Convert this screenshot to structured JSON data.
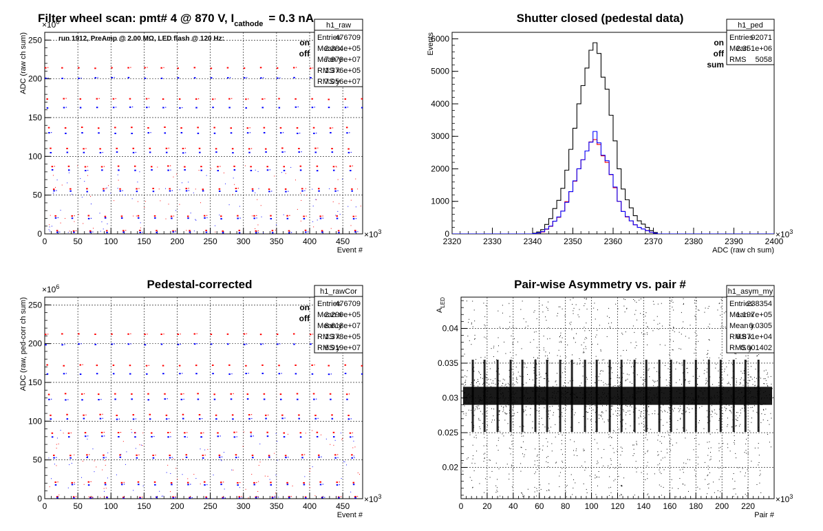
{
  "chart_data": [
    {
      "type": "scatter",
      "title": "Filter wheel scan: pmt#   4 @   870 V, I",
      "title_sub": "cathode",
      "title_tail": "= 0.3 nA",
      "xlabel": "Event #",
      "ylabel": "ADC (raw ch sum)",
      "xlim": [
        0,
        480000
      ],
      "ylim": [
        0,
        260000000
      ],
      "x_multiplier_label": "×10",
      "x_multiplier_exp": "3",
      "y_multiplier_label": "×10",
      "y_multiplier_exp": "6",
      "xtick_values": [
        0,
        50,
        100,
        150,
        200,
        250,
        300,
        350,
        400,
        450
      ],
      "xtick_labels": [
        "0",
        "50",
        "100",
        "150",
        "200",
        "250",
        "300",
        "350",
        "400",
        "450"
      ],
      "ytick_values": [
        0,
        50,
        100,
        150,
        200,
        250
      ],
      "ytick_labels": [
        "0",
        "50",
        "100",
        "150",
        "200",
        "250"
      ],
      "grid": true,
      "annotation": "run 1912, PreAmp @ 2.00 MΩ, LED flash @  120 Hz:",
      "legend": [
        "on",
        "off"
      ],
      "series": [
        {
          "name": "on",
          "color": "#ff0000",
          "levels": [
            214,
            174,
            137,
            110,
            87,
            58,
            23,
            4
          ]
        },
        {
          "name": "off",
          "color": "#0000ff",
          "levels": [
            201,
            163,
            130,
            105,
            82,
            55,
            20,
            2
          ]
        }
      ],
      "stats": {
        "name": "h1_raw",
        "rows": [
          [
            "Entries",
            "476709"
          ],
          [
            "Mean x",
            "2.384e+05"
          ],
          [
            "Mean y",
            "7.979e+07"
          ],
          [
            "RMS x",
            "1.376e+05"
          ],
          [
            "RMS y",
            "7.056e+07"
          ]
        ]
      }
    },
    {
      "type": "histogram",
      "title": "Shutter closed (pedestal data)",
      "xlabel": "ADC (raw ch sum)",
      "ylabel": "Events",
      "xlim": [
        2320000,
        2400000
      ],
      "ylim": [
        0,
        6200
      ],
      "x_multiplier_label": "×10",
      "x_multiplier_exp": "3",
      "xtick_values": [
        2320,
        2330,
        2340,
        2350,
        2360,
        2370,
        2380,
        2390,
        2400
      ],
      "xtick_labels": [
        "2320",
        "2330",
        "2340",
        "2350",
        "2360",
        "2370",
        "2380",
        "2390",
        "2400"
      ],
      "ytick_values": [
        0,
        1000,
        2000,
        3000,
        4000,
        5000,
        6000
      ],
      "ytick_labels": [
        "0",
        "1000",
        "2000",
        "3000",
        "4000",
        "5000",
        "6000"
      ],
      "grid": false,
      "legend": [
        "on",
        "off",
        "sum"
      ],
      "bins_start": 2320,
      "bin_width": 1,
      "series": [
        {
          "name": "sum",
          "color": "#000000",
          "values": [
            0,
            0,
            0,
            0,
            0,
            0,
            0,
            0,
            0,
            0,
            0,
            0,
            0,
            0,
            0,
            0,
            0,
            0,
            0,
            0,
            20,
            60,
            130,
            290,
            470,
            780,
            1030,
            1400,
            1960,
            2600,
            3250,
            4000,
            4560,
            5100,
            5650,
            5880,
            5550,
            4820,
            4450,
            3650,
            2860,
            2000,
            1380,
            1050,
            800,
            560,
            400,
            300,
            200,
            100,
            40,
            0,
            0,
            0,
            0,
            0,
            0,
            0,
            0,
            0,
            0,
            0,
            0,
            0,
            0,
            0,
            0,
            0,
            0,
            0,
            0,
            0,
            0,
            0,
            0,
            0,
            0,
            0,
            0,
            0
          ]
        },
        {
          "name": "on",
          "color": "#ff0000",
          "values": [
            0,
            0,
            0,
            0,
            0,
            0,
            0,
            0,
            0,
            0,
            0,
            0,
            0,
            0,
            0,
            0,
            0,
            0,
            0,
            0,
            10,
            30,
            60,
            140,
            230,
            390,
            510,
            700,
            990,
            1300,
            1620,
            2000,
            2280,
            2550,
            2830,
            2900,
            2750,
            2400,
            2200,
            1820,
            1420,
            1000,
            690,
            520,
            400,
            280,
            200,
            150,
            100,
            50,
            20,
            0,
            0,
            0,
            0,
            0,
            0,
            0,
            0,
            0,
            0,
            0,
            0,
            0,
            0,
            0,
            0,
            0,
            0,
            0,
            0,
            0,
            0,
            0,
            0,
            0,
            0,
            0,
            0,
            0
          ]
        },
        {
          "name": "off",
          "color": "#0000ff",
          "values": [
            0,
            0,
            0,
            0,
            0,
            0,
            0,
            0,
            0,
            0,
            0,
            0,
            0,
            0,
            0,
            0,
            0,
            0,
            0,
            0,
            10,
            30,
            70,
            150,
            240,
            390,
            520,
            700,
            970,
            1300,
            1630,
            2000,
            2280,
            2550,
            2820,
            3150,
            2800,
            2420,
            2250,
            1830,
            1440,
            1000,
            690,
            530,
            400,
            280,
            200,
            150,
            100,
            50,
            20,
            0,
            0,
            0,
            0,
            0,
            0,
            0,
            0,
            0,
            0,
            0,
            0,
            0,
            0,
            0,
            0,
            0,
            0,
            0,
            0,
            0,
            0,
            0,
            0,
            0,
            0,
            0,
            0,
            0
          ]
        }
      ],
      "stats": {
        "name": "h1_ped",
        "rows": [
          [
            "Entries",
            "92071"
          ],
          [
            "Mean",
            "2.351e+06"
          ],
          [
            "RMS",
            "5058"
          ]
        ]
      }
    },
    {
      "type": "scatter",
      "title": "Pedestal-corrected",
      "xlabel": "Event #",
      "ylabel": "ADC (raw, ped-corr ch sum)",
      "xlim": [
        0,
        480000
      ],
      "ylim": [
        0,
        260000000
      ],
      "x_multiplier_label": "×10",
      "x_multiplier_exp": "3",
      "y_multiplier_label": "×10",
      "y_multiplier_exp": "6",
      "xtick_values": [
        0,
        50,
        100,
        150,
        200,
        250,
        300,
        350,
        400,
        450
      ],
      "xtick_labels": [
        "0",
        "50",
        "100",
        "150",
        "200",
        "250",
        "300",
        "350",
        "400",
        "450"
      ],
      "ytick_values": [
        0,
        50,
        100,
        150,
        200,
        250
      ],
      "ytick_labels": [
        "0",
        "50",
        "100",
        "150",
        "200",
        "250"
      ],
      "grid": true,
      "legend": [
        "on",
        "off"
      ],
      "series": [
        {
          "name": "on",
          "color": "#ff0000",
          "levels": [
            212,
            172,
            135,
            108,
            85,
            56,
            21,
            2
          ]
        },
        {
          "name": "off",
          "color": "#0000ff",
          "levels": [
            199,
            161,
            128,
            103,
            80,
            53,
            18,
            1
          ]
        }
      ],
      "stats": {
        "name": "h1_rawCor",
        "rows": [
          [
            "Entries",
            "476709"
          ],
          [
            "Mean x",
            "2.299e+05"
          ],
          [
            "Mean y",
            "8.618e+07"
          ],
          [
            "RMS x",
            "1.378e+05"
          ],
          [
            "RMS y",
            "6.919e+07"
          ]
        ]
      }
    },
    {
      "type": "scatter",
      "title": "Pair-wise Asymmetry vs. pair #",
      "xlabel": "Pair #",
      "ylabel": "A",
      "ylabel_sub": "LED",
      "xlim": [
        0,
        240000
      ],
      "ylim": [
        0.0155,
        0.0445
      ],
      "x_multiplier_label": "×10",
      "x_multiplier_exp": "3",
      "xtick_values": [
        0,
        20,
        40,
        60,
        80,
        100,
        120,
        140,
        160,
        180,
        200,
        220
      ],
      "xtick_labels": [
        "0",
        "20",
        "40",
        "60",
        "80",
        "100",
        "120",
        "140",
        "160",
        "180",
        "200",
        "220"
      ],
      "ytick_values": [
        0.02,
        0.025,
        0.03,
        0.035,
        0.04
      ],
      "ytick_labels": [
        "0.02",
        "0.025",
        "0.03",
        "0.035",
        "0.04"
      ],
      "grid": true,
      "band_center": 0.0303,
      "band_halfwidth": 0.0013,
      "spike_x": [
        9,
        18,
        28,
        38,
        47,
        57,
        66,
        76,
        85,
        95,
        104,
        114,
        123,
        133,
        142,
        152,
        161,
        171,
        180,
        190,
        199,
        209,
        218,
        228
      ],
      "stats": {
        "name": "h1_asym_my",
        "rows": [
          [
            "Entries",
            "238354"
          ],
          [
            "Mean x",
            "1.197e+05"
          ],
          [
            "Mean y",
            "0.0305"
          ],
          [
            "RMS x",
            "6.871e+04"
          ],
          [
            "RMS y",
            "0.001402"
          ]
        ]
      }
    }
  ]
}
